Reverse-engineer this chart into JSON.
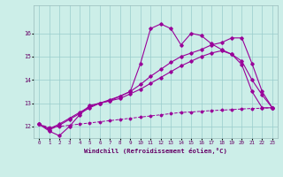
{
  "xlabel": "Windchill (Refroidissement éolien,°C)",
  "bg_color": "#cceee8",
  "line_color": "#990099",
  "grid_color": "#99cccc",
  "xmin": -0.5,
  "xmax": 23.5,
  "ymin": 11.5,
  "ymax": 17.2,
  "yticks": [
    12,
    13,
    14,
    15,
    16
  ],
  "xticks": [
    0,
    1,
    2,
    3,
    4,
    5,
    6,
    7,
    8,
    9,
    10,
    11,
    12,
    13,
    14,
    15,
    16,
    17,
    18,
    19,
    20,
    21,
    22,
    23
  ],
  "line1_x": [
    0,
    1,
    2,
    3,
    4,
    5,
    6,
    7,
    8,
    9,
    10,
    11,
    12,
    13,
    14,
    15,
    16,
    17,
    18,
    19,
    20,
    21,
    22,
    23
  ],
  "line1_y": [
    12.1,
    11.8,
    11.6,
    12.0,
    12.5,
    12.9,
    13.0,
    13.1,
    13.3,
    13.5,
    14.7,
    16.2,
    16.4,
    16.2,
    15.5,
    16.0,
    15.9,
    15.55,
    15.3,
    15.1,
    14.65,
    13.5,
    12.8,
    12.8
  ],
  "line2_x": [
    0,
    1,
    2,
    3,
    4,
    5,
    6,
    7,
    8,
    9,
    10,
    11,
    12,
    13,
    14,
    15,
    16,
    17,
    18,
    19,
    20,
    21,
    22,
    23
  ],
  "line2_y": [
    12.1,
    11.85,
    12.05,
    12.3,
    12.55,
    12.8,
    13.0,
    13.15,
    13.3,
    13.5,
    13.8,
    14.15,
    14.45,
    14.75,
    15.0,
    15.15,
    15.3,
    15.5,
    15.6,
    15.8,
    15.8,
    14.7,
    13.5,
    12.8
  ],
  "line3_x": [
    0,
    1,
    2,
    3,
    4,
    5,
    6,
    7,
    8,
    9,
    10,
    11,
    12,
    13,
    14,
    15,
    16,
    17,
    18,
    19,
    20,
    21,
    22,
    23
  ],
  "line3_y": [
    12.1,
    11.9,
    12.1,
    12.35,
    12.6,
    12.85,
    13.0,
    13.1,
    13.2,
    13.4,
    13.6,
    13.85,
    14.1,
    14.35,
    14.6,
    14.8,
    15.0,
    15.15,
    15.25,
    15.1,
    14.8,
    14.0,
    13.35,
    12.8
  ],
  "line4_x": [
    0,
    1,
    2,
    3,
    4,
    5,
    6,
    7,
    8,
    9,
    10,
    11,
    12,
    13,
    14,
    15,
    16,
    17,
    18,
    19,
    20,
    21,
    22,
    23
  ],
  "line4_y": [
    12.1,
    11.95,
    12.0,
    12.05,
    12.1,
    12.15,
    12.2,
    12.25,
    12.3,
    12.35,
    12.4,
    12.45,
    12.5,
    12.55,
    12.6,
    12.62,
    12.65,
    12.68,
    12.7,
    12.72,
    12.75,
    12.77,
    12.78,
    12.8
  ]
}
